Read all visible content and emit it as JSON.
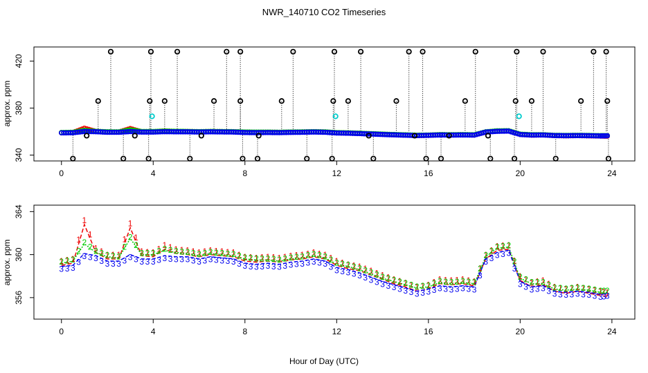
{
  "title": "NWR_140710  CO2 Timeseries",
  "xlabel": "Hour of Day (UTC)",
  "colors": {
    "axis": "#000000",
    "frame": "#000000",
    "series1": "#ee0000",
    "series2": "#00cc00",
    "series3": "#0000ee",
    "flag": "#00cccc",
    "outlier": "#000000"
  },
  "chart_data": [
    {
      "type": "scatter",
      "panel": "top",
      "ylabel": "approx. ppm",
      "xlim": [
        -1.2,
        25.0
      ],
      "ylim": [
        335,
        432
      ],
      "xticks": [
        0,
        4,
        8,
        12,
        16,
        20,
        24
      ],
      "xtick_labels": [
        "0",
        "4",
        "8",
        "12",
        "16",
        "20",
        "24"
      ],
      "yticks": [
        340,
        380,
        420
      ],
      "ytick_labels": [
        "340",
        "380",
        "420"
      ],
      "baseline_series": [
        {
          "name": "1",
          "x": [
            0.0,
            0.5,
            1.0,
            1.5,
            2.0,
            2.5,
            3.0,
            3.5,
            4.0,
            4.5,
            5.0,
            5.5,
            6.0,
            6.5,
            7.0,
            7.5,
            8.0,
            8.5,
            9.0,
            9.5,
            10.0,
            10.5,
            11.0,
            11.5,
            12.0,
            12.5,
            13.0,
            13.5,
            14.0,
            14.5,
            15.0,
            15.5,
            16.0,
            16.5,
            17.0,
            17.5,
            18.0,
            18.5,
            19.0,
            19.5,
            20.0,
            20.5,
            21.0,
            21.5,
            22.0,
            22.5,
            23.0,
            23.5,
            23.8
          ],
          "y": [
            359.0,
            359.2,
            362.8,
            360.2,
            359.6,
            359.6,
            362.5,
            359.9,
            359.8,
            360.5,
            360.1,
            360.0,
            359.8,
            360.0,
            359.9,
            359.8,
            359.4,
            359.3,
            359.4,
            359.3,
            359.5,
            359.6,
            359.8,
            359.6,
            359.0,
            358.7,
            358.5,
            358.1,
            357.7,
            357.3,
            357.0,
            356.6,
            356.8,
            357.3,
            357.2,
            357.3,
            357.1,
            359.6,
            360.4,
            360.5,
            357.6,
            357.0,
            357.2,
            356.6,
            356.4,
            356.6,
            356.4,
            356.2,
            356.1
          ]
        },
        {
          "name": "2",
          "x": [
            0.0,
            0.5,
            1.0,
            1.5,
            2.0,
            2.5,
            3.0,
            3.5,
            4.0,
            4.5,
            5.0,
            5.5,
            6.0,
            6.5,
            7.0,
            7.5,
            8.0,
            8.5,
            9.0,
            9.5,
            10.0,
            10.5,
            11.0,
            11.5,
            12.0,
            12.5,
            13.0,
            13.5,
            14.0,
            14.5,
            15.0,
            15.5,
            16.0,
            16.5,
            17.0,
            17.5,
            18.0,
            18.5,
            19.0,
            19.5,
            20.0,
            20.5,
            21.0,
            21.5,
            22.0,
            22.5,
            23.0,
            23.5,
            23.8
          ],
          "y": [
            359.2,
            359.4,
            361.0,
            360.2,
            359.8,
            359.7,
            361.5,
            360.0,
            360.0,
            360.4,
            360.2,
            360.1,
            359.9,
            360.1,
            360.0,
            359.9,
            359.6,
            359.5,
            359.5,
            359.4,
            359.6,
            359.7,
            359.9,
            359.7,
            359.1,
            358.9,
            358.6,
            358.2,
            357.8,
            357.5,
            357.2,
            356.9,
            357.0,
            357.4,
            357.3,
            357.4,
            357.3,
            359.8,
            360.6,
            360.7,
            357.8,
            357.3,
            357.3,
            356.8,
            356.7,
            356.8,
            356.7,
            356.5,
            356.5
          ]
        },
        {
          "name": "3",
          "x": [
            0.0,
            0.5,
            1.0,
            1.5,
            2.0,
            2.5,
            3.0,
            3.5,
            4.0,
            4.5,
            5.0,
            5.5,
            6.0,
            6.5,
            7.0,
            7.5,
            8.0,
            8.5,
            9.0,
            9.5,
            10.0,
            10.5,
            11.0,
            11.5,
            12.0,
            12.5,
            13.0,
            13.5,
            14.0,
            14.5,
            15.0,
            15.5,
            16.0,
            16.5,
            17.0,
            17.5,
            18.0,
            18.5,
            19.0,
            19.5,
            20.0,
            20.5,
            21.0,
            21.5,
            22.0,
            22.5,
            23.0,
            23.5,
            23.8
          ],
          "y": [
            358.9,
            359.0,
            360.1,
            359.9,
            359.4,
            359.4,
            360.0,
            359.6,
            359.6,
            359.9,
            359.8,
            359.8,
            359.6,
            359.8,
            359.7,
            359.6,
            359.2,
            359.1,
            359.2,
            359.1,
            359.3,
            359.4,
            359.6,
            359.4,
            358.8,
            358.6,
            358.3,
            357.9,
            357.5,
            357.2,
            356.9,
            356.6,
            356.8,
            357.1,
            357.0,
            357.1,
            357.0,
            359.6,
            360.2,
            360.4,
            357.5,
            357.0,
            357.1,
            356.6,
            356.5,
            356.6,
            356.5,
            356.3,
            356.4
          ]
        }
      ],
      "outliers_high": {
        "x": [
          2.15,
          3.9,
          5.05,
          7.2,
          7.8,
          10.1,
          11.9,
          13.05,
          15.15,
          15.75,
          18.05,
          19.85,
          21.0,
          23.2,
          23.75
        ],
        "y": [
          428,
          428,
          428,
          428,
          428,
          428,
          428,
          428,
          428,
          428,
          428,
          428,
          428,
          428,
          428
        ]
      },
      "outliers_mid": {
        "x": [
          1.6,
          3.85,
          4.5,
          6.65,
          7.8,
          9.6,
          11.85,
          12.5,
          14.6,
          17.6,
          19.8,
          20.5,
          22.65,
          23.8
        ],
        "y": [
          386,
          386,
          386,
          386,
          386,
          386,
          386,
          386,
          386,
          386,
          386,
          386,
          386,
          386
        ]
      },
      "outliers_low": {
        "x": [
          0.5,
          2.7,
          3.8,
          5.6,
          7.9,
          8.55,
          10.7,
          11.8,
          13.6,
          15.9,
          16.55,
          18.7,
          19.75,
          21.55,
          23.85
        ],
        "y": [
          337,
          337,
          337,
          337,
          337,
          337,
          337,
          337,
          337,
          337,
          337,
          337,
          337,
          337,
          337
        ]
      },
      "outliers_below_base": {
        "x": [
          1.1,
          3.2,
          6.1,
          8.6,
          13.4,
          15.4,
          16.9,
          18.6
        ],
        "y": [
          356.5,
          356.5,
          356.5,
          356.5,
          356.5,
          356.5,
          356.5,
          356.5
        ]
      },
      "flagged": {
        "x": [
          3.95,
          11.95,
          19.95
        ],
        "y": [
          373,
          373,
          373
        ]
      }
    },
    {
      "type": "line",
      "panel": "bottom",
      "ylabel": "approx. ppm",
      "xlim": [
        -1.2,
        25.0
      ],
      "ylim": [
        354.0,
        364.6
      ],
      "xticks": [
        0,
        4,
        8,
        12,
        16,
        20,
        24
      ],
      "xtick_labels": [
        "0",
        "4",
        "8",
        "12",
        "16",
        "20",
        "24"
      ],
      "yticks": [
        356,
        360,
        364
      ],
      "ytick_labels": [
        "356",
        "360",
        "364"
      ],
      "series": [
        {
          "name": "1",
          "label_char": "1",
          "x": [
            0.0,
            0.5,
            1.0,
            1.5,
            2.0,
            2.5,
            3.0,
            3.5,
            4.0,
            4.5,
            5.0,
            5.5,
            6.0,
            6.5,
            7.0,
            7.5,
            8.0,
            8.5,
            9.0,
            9.5,
            10.0,
            10.5,
            11.0,
            11.5,
            12.0,
            12.5,
            13.0,
            13.5,
            14.0,
            14.5,
            15.0,
            15.5,
            16.0,
            16.5,
            17.0,
            17.5,
            18.0,
            18.5,
            19.0,
            19.5,
            20.0,
            20.5,
            21.0,
            21.5,
            22.0,
            22.5,
            23.0,
            23.5,
            23.8
          ],
          "y": [
            359.0,
            359.2,
            362.8,
            360.2,
            359.6,
            359.6,
            362.5,
            359.9,
            359.8,
            360.5,
            360.1,
            360.0,
            359.8,
            360.0,
            359.9,
            359.8,
            359.4,
            359.3,
            359.4,
            359.3,
            359.5,
            359.6,
            359.8,
            359.6,
            359.0,
            358.7,
            358.5,
            358.1,
            357.7,
            357.3,
            357.0,
            356.6,
            356.8,
            357.3,
            357.2,
            357.3,
            357.1,
            359.6,
            360.4,
            360.5,
            357.6,
            357.0,
            357.2,
            356.6,
            356.4,
            356.6,
            356.4,
            356.2,
            356.1
          ]
        },
        {
          "name": "2",
          "label_char": "2",
          "x": [
            0.0,
            0.5,
            1.0,
            1.5,
            2.0,
            2.5,
            3.0,
            3.5,
            4.0,
            4.5,
            5.0,
            5.5,
            6.0,
            6.5,
            7.0,
            7.5,
            8.0,
            8.5,
            9.0,
            9.5,
            10.0,
            10.5,
            11.0,
            11.5,
            12.0,
            12.5,
            13.0,
            13.5,
            14.0,
            14.5,
            15.0,
            15.5,
            16.0,
            16.5,
            17.0,
            17.5,
            18.0,
            18.5,
            19.0,
            19.5,
            20.0,
            20.5,
            21.0,
            21.5,
            22.0,
            22.5,
            23.0,
            23.5,
            23.8
          ],
          "y": [
            359.2,
            359.4,
            361.0,
            360.2,
            359.8,
            359.7,
            361.5,
            360.0,
            360.0,
            360.4,
            360.2,
            360.1,
            359.9,
            360.1,
            360.0,
            359.9,
            359.6,
            359.5,
            359.5,
            359.4,
            359.6,
            359.7,
            359.9,
            359.7,
            359.1,
            358.9,
            358.6,
            358.2,
            357.8,
            357.5,
            357.2,
            356.9,
            357.0,
            357.4,
            357.3,
            357.4,
            357.3,
            359.8,
            360.6,
            360.7,
            357.8,
            357.3,
            357.3,
            356.8,
            356.7,
            356.8,
            356.7,
            356.5,
            356.5
          ]
        },
        {
          "name": "3",
          "label_char": "3",
          "x": [
            0.0,
            0.5,
            1.0,
            1.5,
            2.0,
            2.5,
            3.0,
            3.5,
            4.0,
            4.5,
            5.0,
            5.5,
            6.0,
            6.5,
            7.0,
            7.5,
            8.0,
            8.5,
            9.0,
            9.5,
            10.0,
            10.5,
            11.0,
            11.5,
            12.0,
            12.5,
            13.0,
            13.5,
            14.0,
            14.5,
            15.0,
            15.5,
            16.0,
            16.5,
            17.0,
            17.5,
            18.0,
            18.5,
            19.0,
            19.5,
            20.0,
            20.5,
            21.0,
            21.5,
            22.0,
            22.5,
            23.0,
            23.5,
            23.8
          ],
          "y": [
            358.9,
            359.0,
            360.1,
            359.9,
            359.4,
            359.4,
            360.0,
            359.6,
            359.6,
            359.9,
            359.8,
            359.8,
            359.6,
            359.8,
            359.7,
            359.6,
            359.2,
            359.1,
            359.2,
            359.1,
            359.3,
            359.4,
            359.6,
            359.4,
            358.8,
            358.6,
            358.3,
            357.9,
            357.5,
            357.2,
            356.9,
            356.6,
            356.8,
            357.1,
            357.0,
            357.1,
            357.0,
            359.6,
            360.2,
            360.4,
            357.5,
            357.0,
            357.1,
            356.6,
            356.5,
            356.6,
            356.5,
            356.3,
            356.4
          ]
        }
      ]
    }
  ]
}
